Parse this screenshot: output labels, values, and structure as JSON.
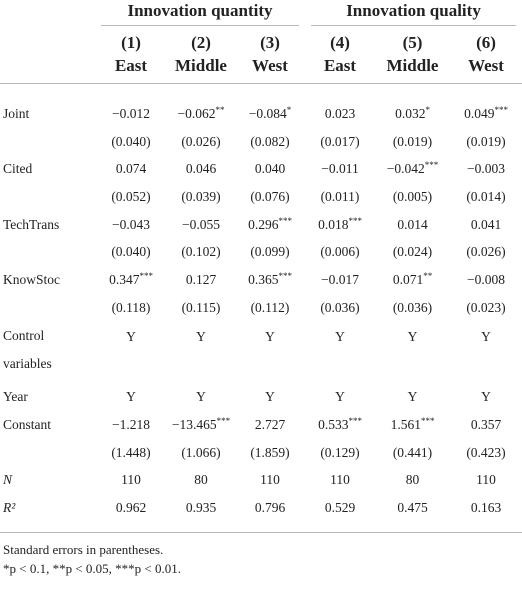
{
  "header": {
    "groups": [
      "Innovation quantity",
      "Innovation quality"
    ],
    "columns": [
      {
        "number": "(1)",
        "region": "East"
      },
      {
        "number": "(2)",
        "region": "Middle"
      },
      {
        "number": "(3)",
        "region": "West"
      },
      {
        "number": "(4)",
        "region": "East"
      },
      {
        "number": "(5)",
        "region": "Middle"
      },
      {
        "number": "(6)",
        "region": "West"
      }
    ]
  },
  "rows": [
    {
      "label": "Joint",
      "cells": [
        {
          "coef": "−0.012"
        },
        {
          "coef": "−0.062",
          "sig": "**"
        },
        {
          "coef": "−0.084",
          "sig": "*"
        },
        {
          "coef": "0.023"
        },
        {
          "coef": "0.032",
          "sig": "*"
        },
        {
          "coef": "0.049",
          "sig": "***"
        }
      ]
    },
    {
      "cells": [
        {
          "coef": "(0.040)"
        },
        {
          "coef": "(0.026)"
        },
        {
          "coef": "(0.082)"
        },
        {
          "coef": "(0.017)"
        },
        {
          "coef": "(0.019)"
        },
        {
          "coef": "(0.019)"
        }
      ]
    },
    {
      "label": "Cited",
      "cells": [
        {
          "coef": "0.074"
        },
        {
          "coef": "0.046"
        },
        {
          "coef": "0.040"
        },
        {
          "coef": "−0.011"
        },
        {
          "coef": "−0.042",
          "sig": "***"
        },
        {
          "coef": "−0.003"
        }
      ]
    },
    {
      "cells": [
        {
          "coef": "(0.052)"
        },
        {
          "coef": "(0.039)"
        },
        {
          "coef": "(0.076)"
        },
        {
          "coef": "(0.011)"
        },
        {
          "coef": "(0.005)"
        },
        {
          "coef": "(0.014)"
        }
      ]
    },
    {
      "label": "TechTrans",
      "cells": [
        {
          "coef": "−0.043"
        },
        {
          "coef": "−0.055"
        },
        {
          "coef": "0.296",
          "sig": "***"
        },
        {
          "coef": "0.018",
          "sig": "***"
        },
        {
          "coef": "0.014"
        },
        {
          "coef": "0.041"
        }
      ]
    },
    {
      "cells": [
        {
          "coef": "(0.040)"
        },
        {
          "coef": "(0.102)"
        },
        {
          "coef": "(0.099)"
        },
        {
          "coef": "(0.006)"
        },
        {
          "coef": "(0.024)"
        },
        {
          "coef": "(0.026)"
        }
      ]
    },
    {
      "label": "KnowStoc",
      "cells": [
        {
          "coef": "0.347",
          "sig": "***"
        },
        {
          "coef": "0.127"
        },
        {
          "coef": "0.365",
          "sig": "***"
        },
        {
          "coef": "−0.017"
        },
        {
          "coef": "0.071",
          "sig": "**"
        },
        {
          "coef": "−0.008"
        }
      ]
    },
    {
      "cells": [
        {
          "coef": "(0.118)"
        },
        {
          "coef": "(0.115)"
        },
        {
          "coef": "(0.112)"
        },
        {
          "coef": "(0.036)"
        },
        {
          "coef": "(0.036)"
        },
        {
          "coef": "(0.023)"
        }
      ]
    },
    {
      "label": "Control variables",
      "cells": [
        {
          "coef": "Y"
        },
        {
          "coef": "Y"
        },
        {
          "coef": "Y"
        },
        {
          "coef": "Y"
        },
        {
          "coef": "Y"
        },
        {
          "coef": "Y"
        }
      ]
    },
    {
      "label": "Year",
      "cells": [
        {
          "coef": "Y"
        },
        {
          "coef": "Y"
        },
        {
          "coef": "Y"
        },
        {
          "coef": "Y"
        },
        {
          "coef": "Y"
        },
        {
          "coef": "Y"
        }
      ]
    },
    {
      "label": "Constant",
      "cells": [
        {
          "coef": "−1.218"
        },
        {
          "coef": "−13.465",
          "sig": "***"
        },
        {
          "coef": "2.727"
        },
        {
          "coef": "0.533",
          "sig": "***"
        },
        {
          "coef": "1.561",
          "sig": "***"
        },
        {
          "coef": "0.357"
        }
      ]
    },
    {
      "cells": [
        {
          "coef": "(1.448)"
        },
        {
          "coef": "(1.066)"
        },
        {
          "coef": "(1.859)"
        },
        {
          "coef": "(0.129)"
        },
        {
          "coef": "(0.441)"
        },
        {
          "coef": "(0.423)"
        }
      ]
    },
    {
      "label": "N",
      "cells": [
        {
          "coef": "110"
        },
        {
          "coef": "80"
        },
        {
          "coef": "110"
        },
        {
          "coef": "110"
        },
        {
          "coef": "80"
        },
        {
          "coef": "110"
        }
      ]
    },
    {
      "label": "R²",
      "cells": [
        {
          "coef": "0.962"
        },
        {
          "coef": "0.935"
        },
        {
          "coef": "0.796"
        },
        {
          "coef": "0.529"
        },
        {
          "coef": "0.475"
        },
        {
          "coef": "0.163"
        }
      ]
    }
  ],
  "notes": [
    "Standard errors in parentheses.",
    "*p < 0.1, **p < 0.05, ***p < 0.01."
  ]
}
